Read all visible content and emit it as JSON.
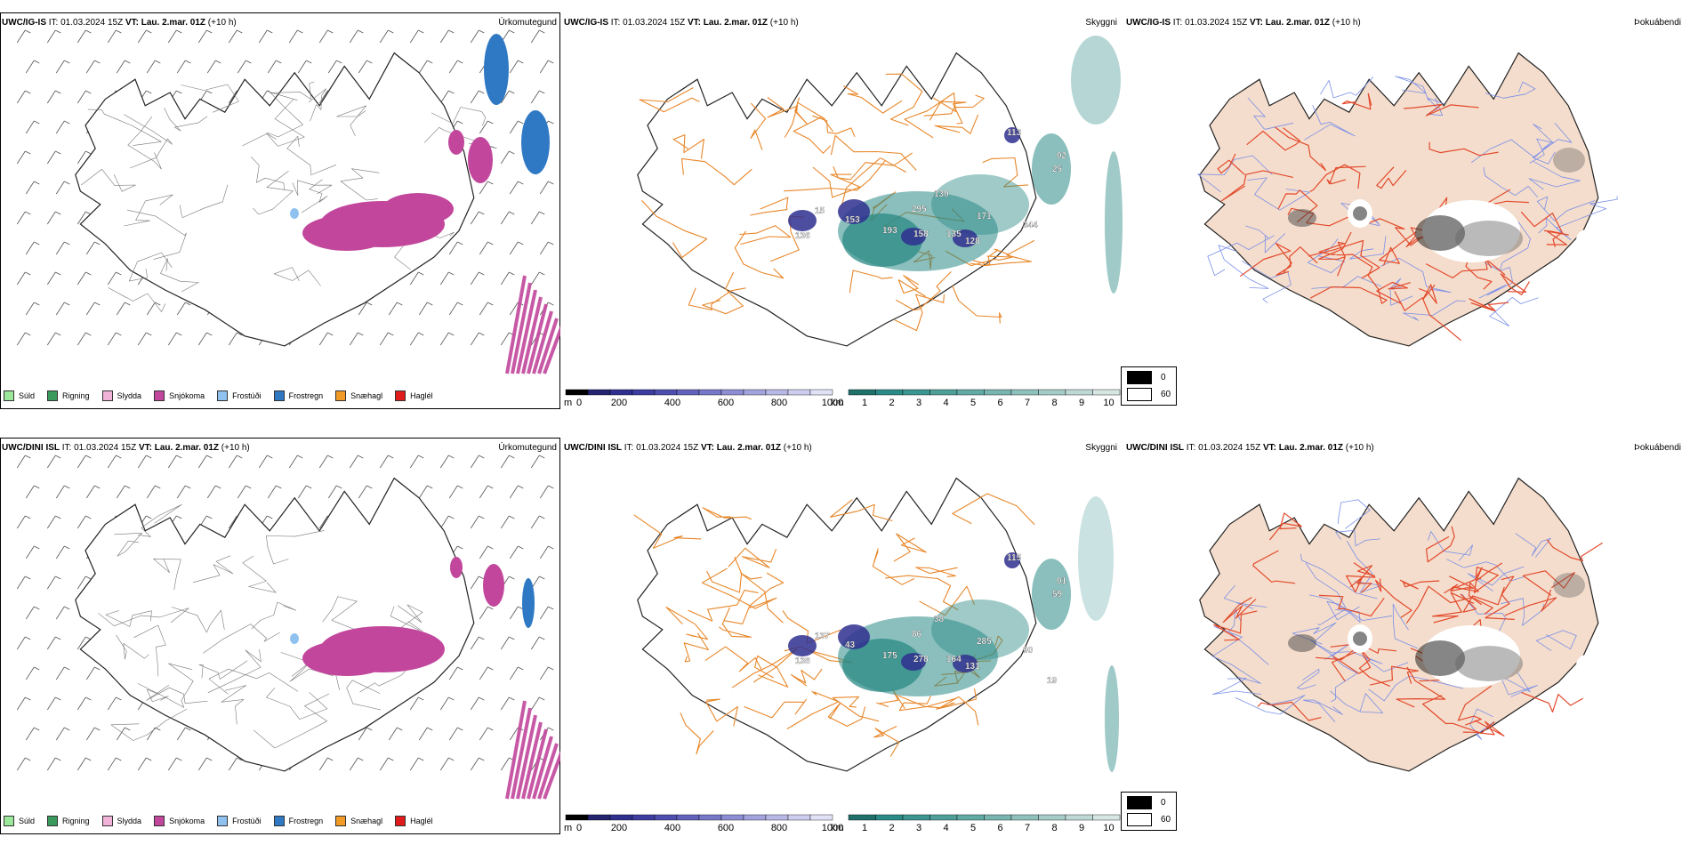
{
  "colors": {
    "snow": "#c2479c",
    "frz_rain": "#2f79c4",
    "frz_drizzle": "#8fc2ef",
    "road": "#e8872a",
    "road_red": "#e34a2c",
    "river": "#7a8fe8",
    "teal": "#2a8a86",
    "land_fog": "#f4ddcc",
    "blue_cloud": "#2f2f8f"
  },
  "rows": [
    {
      "model": "UWC/IG-IS",
      "it_label": "IT:",
      "it_value": "01.03.2024 15Z",
      "vt_label": "VT:",
      "vt_value": "Lau. 2.mar. 01Z",
      "lead": "(+10 h)",
      "panels": [
        {
          "title": "Úrkomutegund"
        },
        {
          "title": "Skyggni",
          "numbers": [
            "113",
            "02",
            "25",
            "130",
            "295",
            "171",
            "344",
            "153",
            "193",
            "158",
            "135",
            "128",
            "136",
            "15"
          ]
        },
        {
          "title": "Þokuábendi"
        }
      ]
    },
    {
      "model": "UWC/DINI ISL",
      "it_label": "IT:",
      "it_value": "01.03.2024 15Z",
      "vt_label": "VT:",
      "vt_value": "Lau. 2.mar. 01Z",
      "lead": "(+10 h)",
      "panels": [
        {
          "title": "Úrkomutegund"
        },
        {
          "title": "Skyggni",
          "numbers": [
            "115",
            "01",
            "59",
            "38",
            "86",
            "285",
            "90",
            "43",
            "175",
            "278",
            "164",
            "131",
            "138",
            "137",
            "19"
          ]
        },
        {
          "title": "Þokuábendi"
        }
      ]
    }
  ],
  "precip_legend": [
    {
      "label": "Súld",
      "color": "#9be89b"
    },
    {
      "label": "Rigning",
      "color": "#3a9a5e"
    },
    {
      "label": "Slydda",
      "color": "#f2b3d9"
    },
    {
      "label": "Snjókoma",
      "color": "#c2479c"
    },
    {
      "label": "Frostúði",
      "color": "#8fc2ef"
    },
    {
      "label": "Frostregn",
      "color": "#2f79c4"
    },
    {
      "label": "Snæhagl",
      "color": "#f29a26"
    },
    {
      "label": "Haglél",
      "color": "#e01b1b"
    }
  ],
  "cloud_base_bar": {
    "unit": "m",
    "ticks": [
      "0",
      "200",
      "400",
      "600",
      "800",
      "1000"
    ],
    "colors": [
      "#000000",
      "#23236e",
      "#2f2f8f",
      "#3d3da0",
      "#4e4eb0",
      "#6262bd",
      "#7777c8",
      "#8d8dd3",
      "#a3a3dd",
      "#b8b8e6",
      "#cdcdef",
      "#e2e2f7"
    ]
  },
  "visibility_bar": {
    "unit": "km",
    "ticks": [
      "1",
      "2",
      "3",
      "4",
      "5",
      "6",
      "7",
      "8",
      "9",
      "10"
    ],
    "colors": [
      "#1f6f6a",
      "#2a8a86",
      "#3c958f",
      "#4e9f99",
      "#62aaa4",
      "#78b5b0",
      "#8fc1bc",
      "#a6ccc8",
      "#bed8d5",
      "#d6e6e3"
    ]
  },
  "fog_legend": [
    {
      "label": "0",
      "color": "#000000"
    },
    {
      "label": "60",
      "color": "#ffffff"
    }
  ]
}
